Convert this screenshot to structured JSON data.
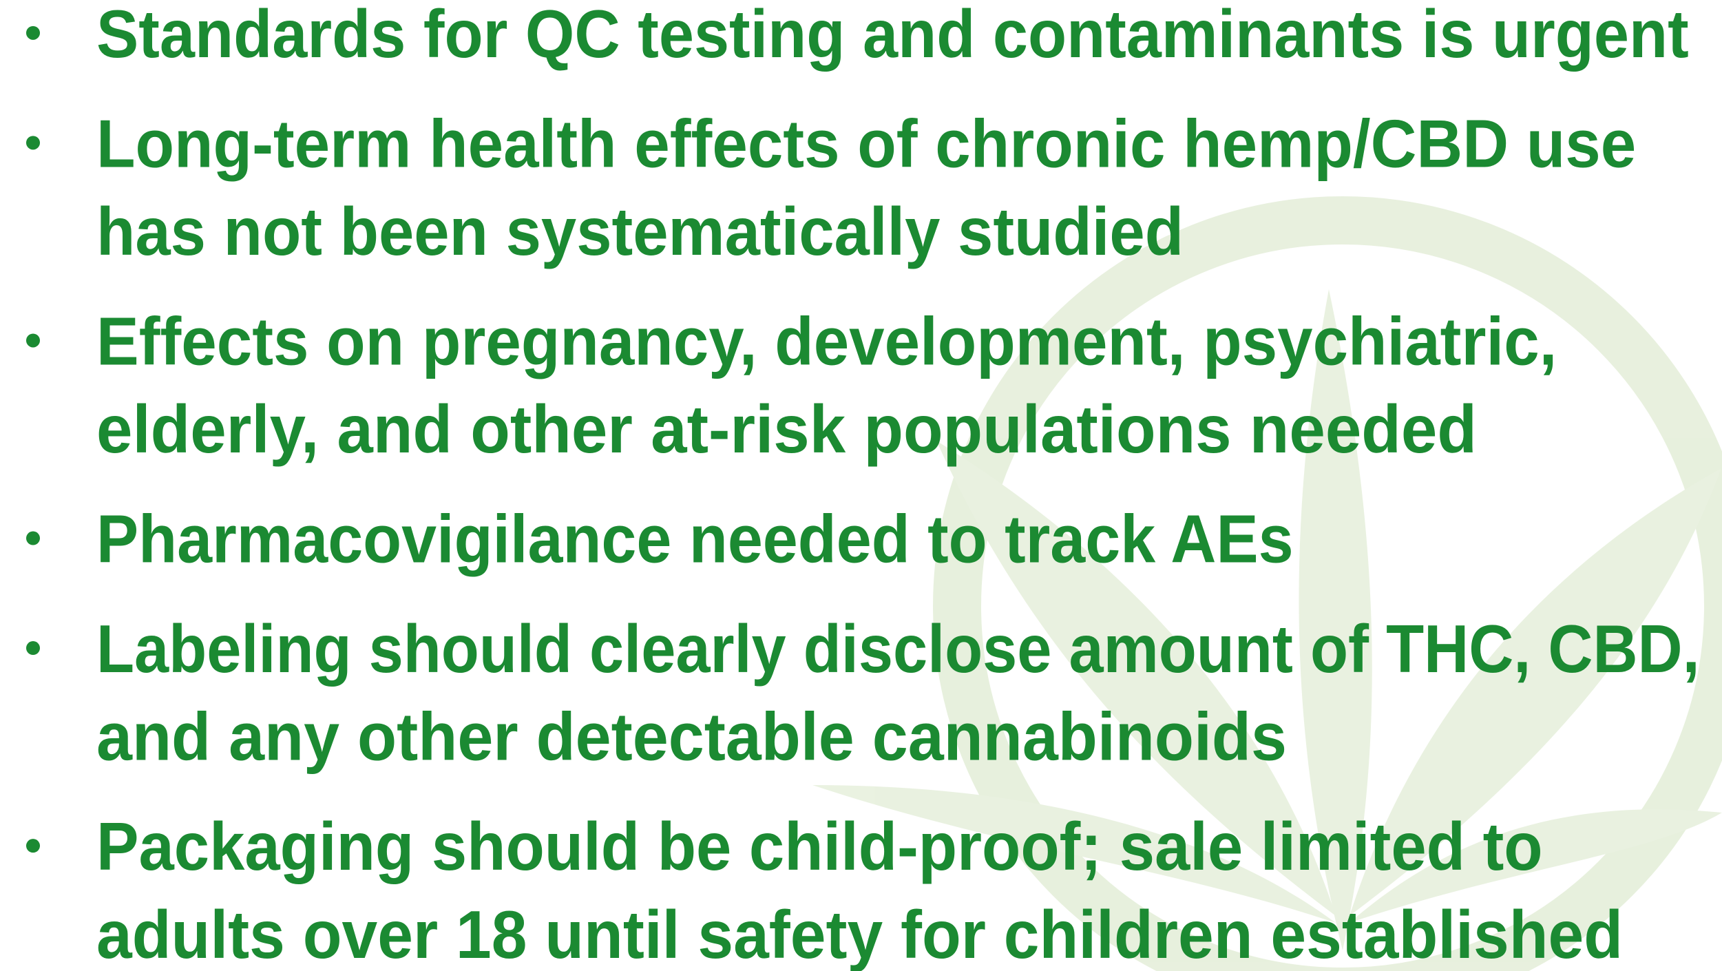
{
  "bullets": [
    {
      "lines": [
        "Standards for QC testing and contaminants is urgent"
      ]
    },
    {
      "lines": [
        "Long-term health effects of chronic hemp/CBD use",
        "has not been systematically studied"
      ]
    },
    {
      "lines": [
        "Effects on pregnancy, development, psychiatric,",
        "elderly, and other at-risk populations needed"
      ]
    },
    {
      "lines": [
        "Pharmacovigilance needed to track AEs"
      ]
    },
    {
      "lines": [
        "Labeling should clearly disclose amount of THC, CBD,",
        "and any other detectable cannabinoids"
      ]
    },
    {
      "lines": [
        "Packaging should be child-proof; sale limited to",
        "adults over 18 until safety for children established"
      ]
    }
  ]
}
